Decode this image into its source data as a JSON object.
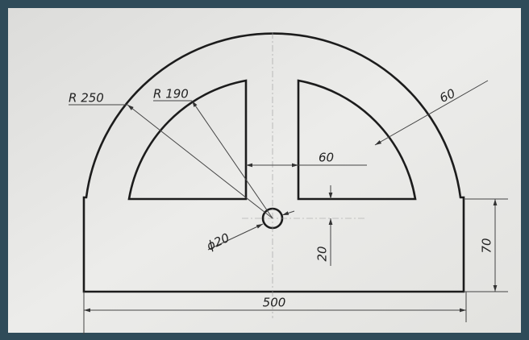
{
  "dimensions": {
    "outer_radius": "R 250",
    "inner_radius": "R 190",
    "rim_width": "60",
    "gap_width": "60",
    "hole_diameter": "ϕ20",
    "hole_offset": "20",
    "side_height": "70",
    "base_width": "500"
  }
}
